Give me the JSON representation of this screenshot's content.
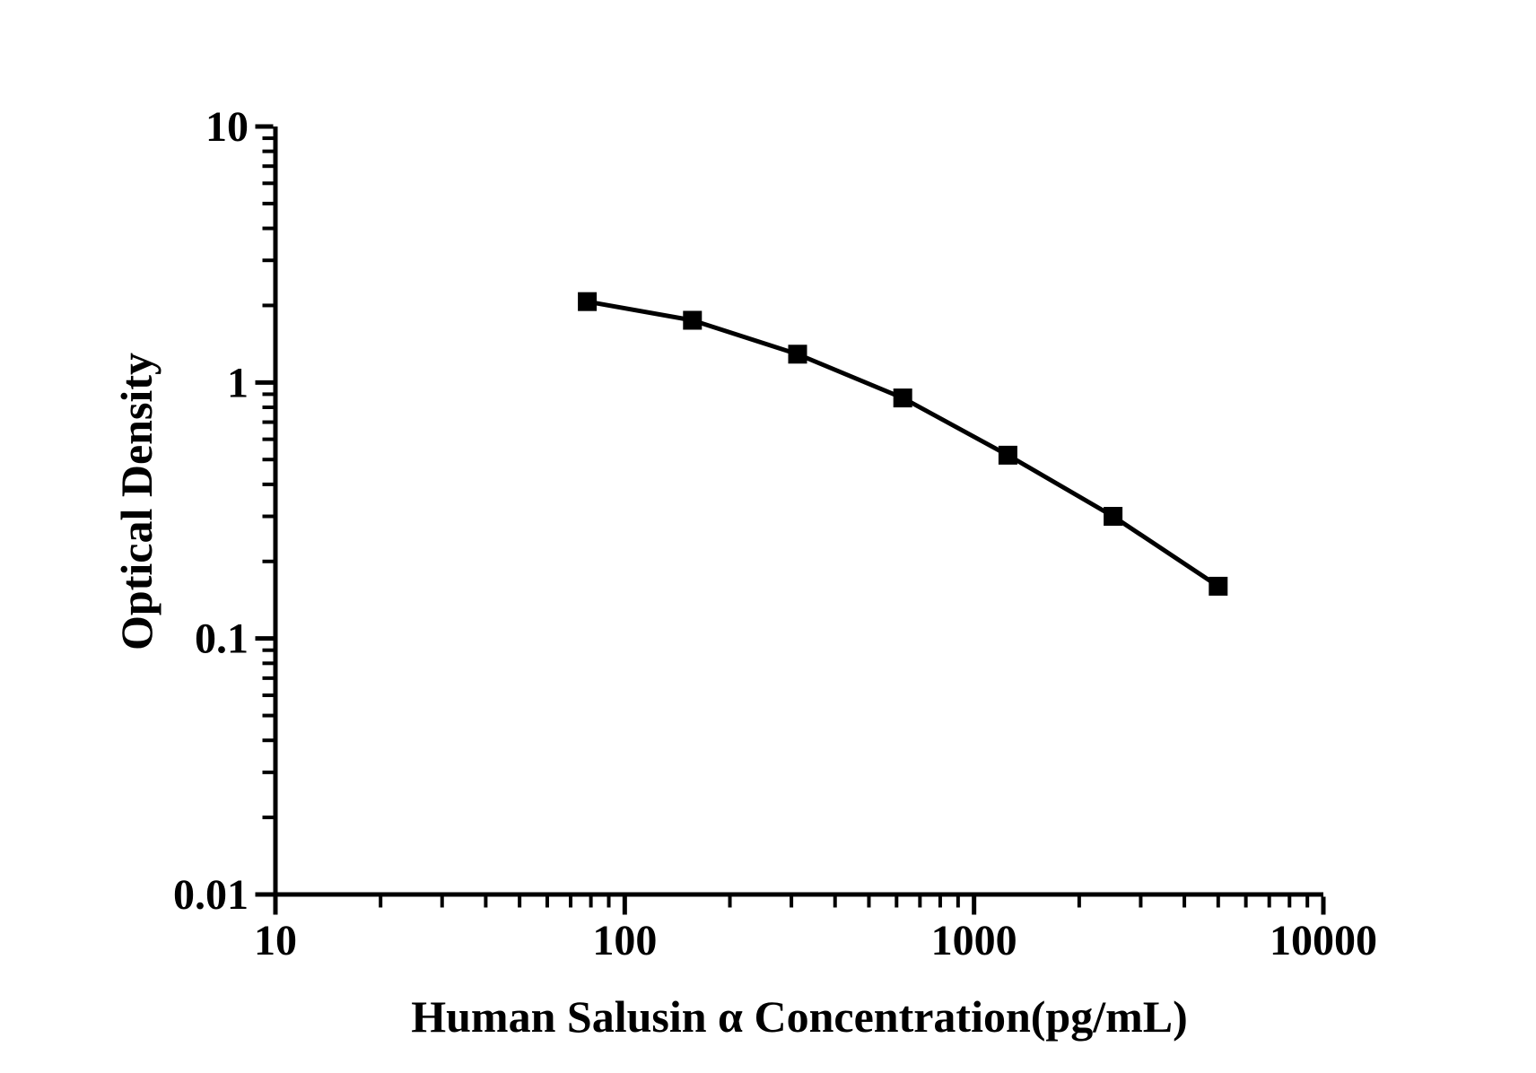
{
  "page": {
    "background_color": "#ffffff",
    "foreground_color": "#000000"
  },
  "chart_data": {
    "type": "line",
    "title": "",
    "xlabel": "Human Salusin α Concentration(pg/mL)",
    "ylabel": "Optical Density",
    "x_scale": "log",
    "y_scale": "log",
    "xlim": [
      10,
      10000
    ],
    "ylim": [
      0.01,
      10
    ],
    "grid": false,
    "legend": null,
    "x_ticks": [
      {
        "value": 10,
        "label": "10"
      },
      {
        "value": 100,
        "label": "100"
      },
      {
        "value": 1000,
        "label": "1000"
      },
      {
        "value": 10000,
        "label": "10000"
      }
    ],
    "y_ticks": [
      {
        "value": 10,
        "label": "10"
      },
      {
        "value": 1,
        "label": "1"
      },
      {
        "value": 0.1,
        "label": "0.1"
      },
      {
        "value": 0.01,
        "label": "0.01"
      }
    ],
    "minor_ticks": "log-decades 2-9",
    "series": [
      {
        "name": "standard-curve",
        "marker": "filled-square",
        "line_color": "#000000",
        "marker_color": "#000000",
        "points": [
          {
            "x": 78.125,
            "y": 2.07
          },
          {
            "x": 156.25,
            "y": 1.75
          },
          {
            "x": 312.5,
            "y": 1.29
          },
          {
            "x": 625,
            "y": 0.87
          },
          {
            "x": 1250,
            "y": 0.52
          },
          {
            "x": 2500,
            "y": 0.3
          },
          {
            "x": 5000,
            "y": 0.16
          }
        ]
      }
    ]
  }
}
